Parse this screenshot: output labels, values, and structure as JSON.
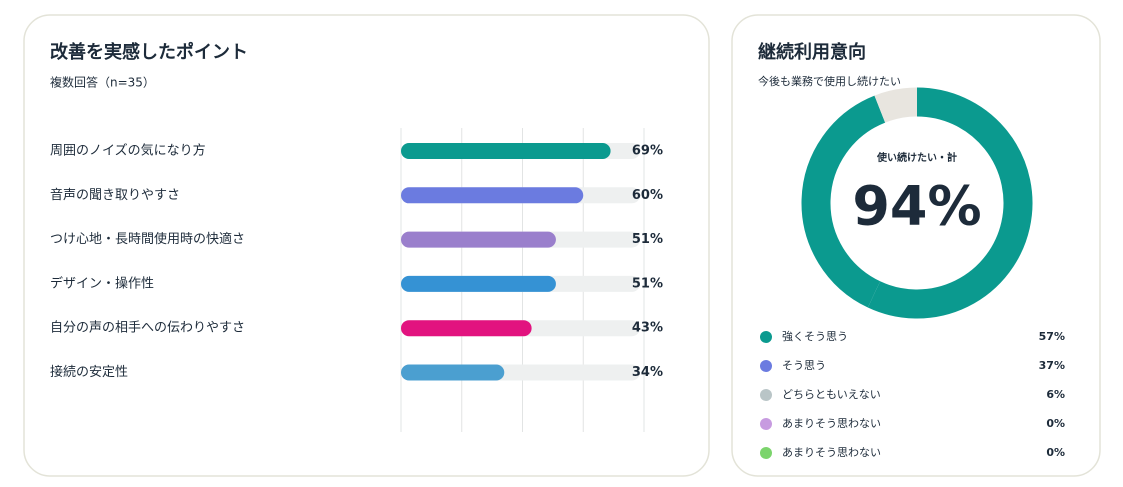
{
  "chart_data": [
    {
      "type": "barh",
      "title": "改善を実感したポイント",
      "subtitle": "複数回答（n=35）",
      "categories": [
        "周囲のノイズの気になり方",
        "音声の聞き取りやすさ",
        "つけ心地・長時間使用時の快適さ",
        "デザイン・操作性",
        "自分の声の相手への伝わりやすさ",
        "接続の安定性"
      ],
      "values": [
        69,
        60,
        51,
        51,
        43,
        34
      ],
      "value_labels": [
        "69%",
        "60%",
        "51%",
        "51%",
        "43%",
        "34%"
      ],
      "colors": [
        "#0b9a8f",
        "#6b7be0",
        "#9a7fcc",
        "#3592d4",
        "#e2137f",
        "#4b9fd0"
      ],
      "xlim": [
        0,
        80
      ],
      "xticks": [
        0,
        20,
        40,
        60,
        80
      ],
      "grid": true
    },
    {
      "type": "donut",
      "title": "継続利用意向",
      "subtitle": "今後も業務で使用し続けたい",
      "center_label": "使い続けたい・計",
      "center_value": 94,
      "center_value_label": "94%",
      "categories": [
        "強くそう思う",
        "そう思う",
        "どちらともいえない",
        "あまりそう思わない",
        "あまりそう思わない"
      ],
      "values": [
        57,
        37,
        6,
        0,
        0
      ],
      "value_labels": [
        "57%",
        "37%",
        "6%",
        "0%",
        "0%"
      ],
      "colors": [
        "#0b9a8f",
        "#6b7be0",
        "#b9c5c7",
        "#c79be0",
        "#7bd46c"
      ],
      "ring_colors": [
        "#0b9a8f",
        "#0b9a8f",
        "#e8e5df",
        "#c79be0",
        "#7bd46c"
      ]
    }
  ]
}
